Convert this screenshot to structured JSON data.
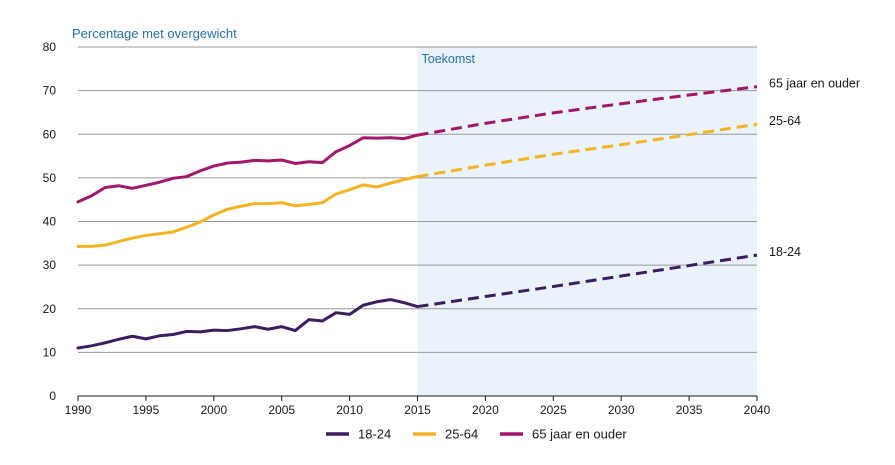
{
  "chart_data": {
    "type": "line",
    "ylabel": "Percentage met overgewicht",
    "region_label": "Toekomst",
    "region_start": 2015,
    "xlim": [
      1990,
      2040
    ],
    "ylim": [
      0,
      80
    ],
    "x_ticks": [
      1990,
      1995,
      2000,
      2005,
      2010,
      2015,
      2020,
      2025,
      2030,
      2035,
      2040
    ],
    "y_ticks": [
      0,
      10,
      20,
      30,
      40,
      50,
      60,
      70,
      80
    ],
    "grid": true,
    "legend_position": "bottom",
    "series": [
      {
        "name": "18-24",
        "color": "#3b1e5f",
        "end_label": "18-24",
        "observed_x": [
          1990,
          1991,
          1992,
          1993,
          1994,
          1995,
          1996,
          1997,
          1998,
          1999,
          2000,
          2001,
          2002,
          2003,
          2004,
          2005,
          2006,
          2007,
          2008,
          2009,
          2010,
          2011,
          2012,
          2013,
          2014,
          2015
        ],
        "observed_y": [
          11.0,
          11.5,
          12.2,
          13.0,
          13.7,
          13.1,
          13.8,
          14.1,
          14.8,
          14.7,
          15.1,
          15.0,
          15.4,
          15.9,
          15.3,
          15.9,
          15.0,
          17.5,
          17.2,
          19.1,
          18.7,
          20.8,
          21.6,
          22.1,
          21.4,
          20.5
        ],
        "projected_x": [
          2015,
          2020,
          2025,
          2030,
          2035,
          2040
        ],
        "projected_y": [
          20.5,
          22.8,
          25.1,
          27.5,
          29.9,
          32.3
        ]
      },
      {
        "name": "25-64",
        "color": "#f4b321",
        "end_label": "25-64",
        "observed_x": [
          1990,
          1991,
          1992,
          1993,
          1994,
          1995,
          1996,
          1997,
          1998,
          1999,
          2000,
          2001,
          2002,
          2003,
          2004,
          2005,
          2006,
          2007,
          2008,
          2009,
          2010,
          2011,
          2012,
          2013,
          2014,
          2015
        ],
        "observed_y": [
          34.3,
          34.3,
          34.6,
          35.4,
          36.2,
          36.8,
          37.2,
          37.6,
          38.7,
          39.9,
          41.5,
          42.8,
          43.5,
          44.1,
          44.1,
          44.3,
          43.6,
          43.9,
          44.3,
          46.3,
          47.3,
          48.4,
          47.9,
          48.8,
          49.6,
          50.3
        ],
        "projected_x": [
          2015,
          2020,
          2025,
          2030,
          2035,
          2040
        ],
        "projected_y": [
          50.3,
          52.9,
          55.4,
          57.6,
          59.9,
          62.3
        ]
      },
      {
        "name": "65 jaar en ouder",
        "color": "#a3176b",
        "end_label": "65 jaar en ouder",
        "observed_x": [
          1990,
          1991,
          1992,
          1993,
          1994,
          1995,
          1996,
          1997,
          1998,
          1999,
          2000,
          2001,
          2002,
          2003,
          2004,
          2005,
          2006,
          2007,
          2008,
          2009,
          2010,
          2011,
          2012,
          2013,
          2014,
          2015
        ],
        "observed_y": [
          44.5,
          45.9,
          47.8,
          48.2,
          47.6,
          48.3,
          49.0,
          49.9,
          50.3,
          51.6,
          52.7,
          53.4,
          53.6,
          54.0,
          53.9,
          54.1,
          53.3,
          53.7,
          53.5,
          56.0,
          57.4,
          59.2,
          59.1,
          59.2,
          59.0,
          59.8
        ],
        "projected_x": [
          2015,
          2020,
          2025,
          2030,
          2035,
          2040
        ],
        "projected_y": [
          59.8,
          62.5,
          64.9,
          67.0,
          69.0,
          70.9
        ]
      }
    ]
  }
}
